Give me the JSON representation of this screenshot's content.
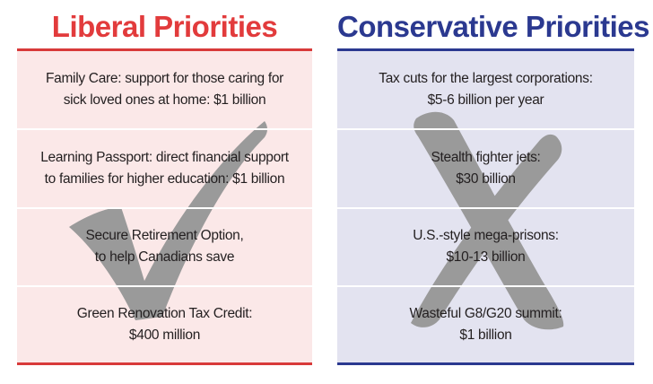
{
  "liberal": {
    "title": "Liberal Priorities",
    "items": [
      "Family Care: support for those caring for\nsick loved ones at home: $1 billion",
      "Learning Passport: direct financial support\nto families for higher education: $1 billion",
      "Secure Retirement Option,\nto help Canadians save",
      "Green Renovation Tax Credit:\n$400 million"
    ]
  },
  "conservative": {
    "title": "Conservative Priorities",
    "items": [
      "Tax cuts for the largest corporations:\n$5-6 billion per year",
      "Stealth fighter jets:\n$30 billion",
      "U.S.-style mega-prisons:\n$10-13 billion",
      "Wasteful G8/G20 summit:\n$1 billion"
    ]
  },
  "colors": {
    "liberal_accent": "#e23b3c",
    "conservative_accent": "#2b3990",
    "liberal_panel": "#fbe8e8",
    "conservative_panel": "#e3e3f0",
    "mark_gray": "#9a9a9a"
  },
  "icons": {
    "liberal_mark": "checkmark-icon",
    "conservative_mark": "x-mark-icon"
  }
}
